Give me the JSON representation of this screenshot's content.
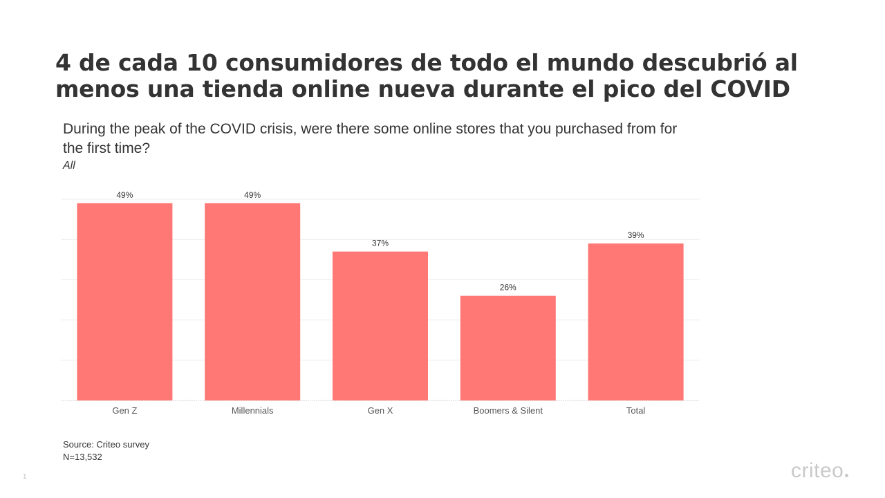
{
  "slide": {
    "title": "4 de cada 10 consumidores de todo el mundo descubrió al menos una tienda online nueva durante el pico del COVID",
    "question": "During the peak of the COVID crisis, were there some online stores that you purchased from for the first time?",
    "subset": "All",
    "source_line1": "Source: Criteo survey",
    "source_line2": "N=13,532",
    "page_number": "1",
    "logo_text": "criteo"
  },
  "colors": {
    "bar": "#ff7875",
    "gridline": "#ececec",
    "axis_line": "#d6d6d6",
    "text": "#333333"
  },
  "chart_data": {
    "type": "bar",
    "categories": [
      "Gen Z",
      "Millennials",
      "Gen X",
      "Boomers & Silent",
      "Total"
    ],
    "values": [
      49,
      49,
      37,
      26,
      39
    ],
    "value_labels": [
      "49%",
      "49%",
      "37%",
      "26%",
      "39%"
    ],
    "ylim": [
      0,
      50
    ],
    "grid": true,
    "legend": "none"
  }
}
